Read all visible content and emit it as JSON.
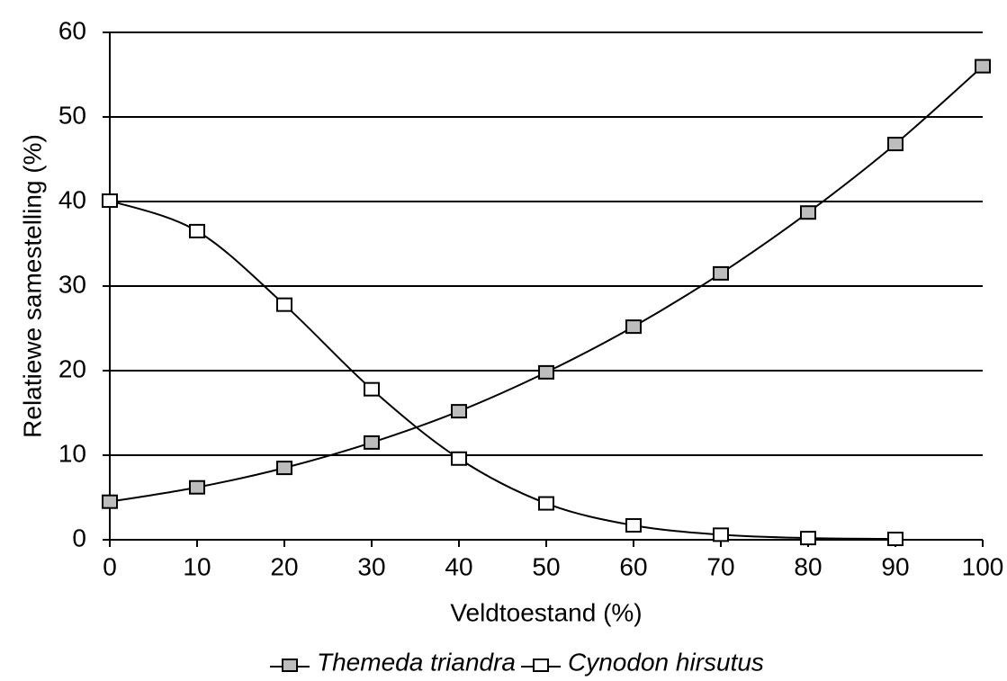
{
  "chart_data": {
    "type": "line",
    "xlabel": "Veldtoestand (%)",
    "ylabel": "Relatiewe samestelling (%)",
    "x": [
      0,
      10,
      20,
      30,
      40,
      50,
      60,
      70,
      80,
      90,
      100
    ],
    "series": [
      {
        "name": "Themeda triandra",
        "color": "#000000",
        "marker_fill": "#bdbdbd",
        "values": [
          4.5,
          6.2,
          8.5,
          11.5,
          15.2,
          19.8,
          25.2,
          31.5,
          38.7,
          46.8,
          56
        ]
      },
      {
        "name": "Cynodon hirsutus",
        "color": "#000000",
        "marker_fill": "#ffffff",
        "values": [
          40.1,
          36.5,
          27.8,
          17.8,
          9.6,
          4.3,
          1.7,
          0.6,
          0.2,
          0.1,
          null
        ]
      }
    ],
    "xlim": [
      0,
      100
    ],
    "xticks": [
      0,
      10,
      20,
      30,
      40,
      50,
      60,
      70,
      80,
      90,
      100
    ],
    "ylim": [
      0,
      60
    ],
    "yticks": [
      0,
      10,
      20,
      30,
      40,
      50,
      60
    ],
    "grid": true,
    "legend": "bottom"
  }
}
